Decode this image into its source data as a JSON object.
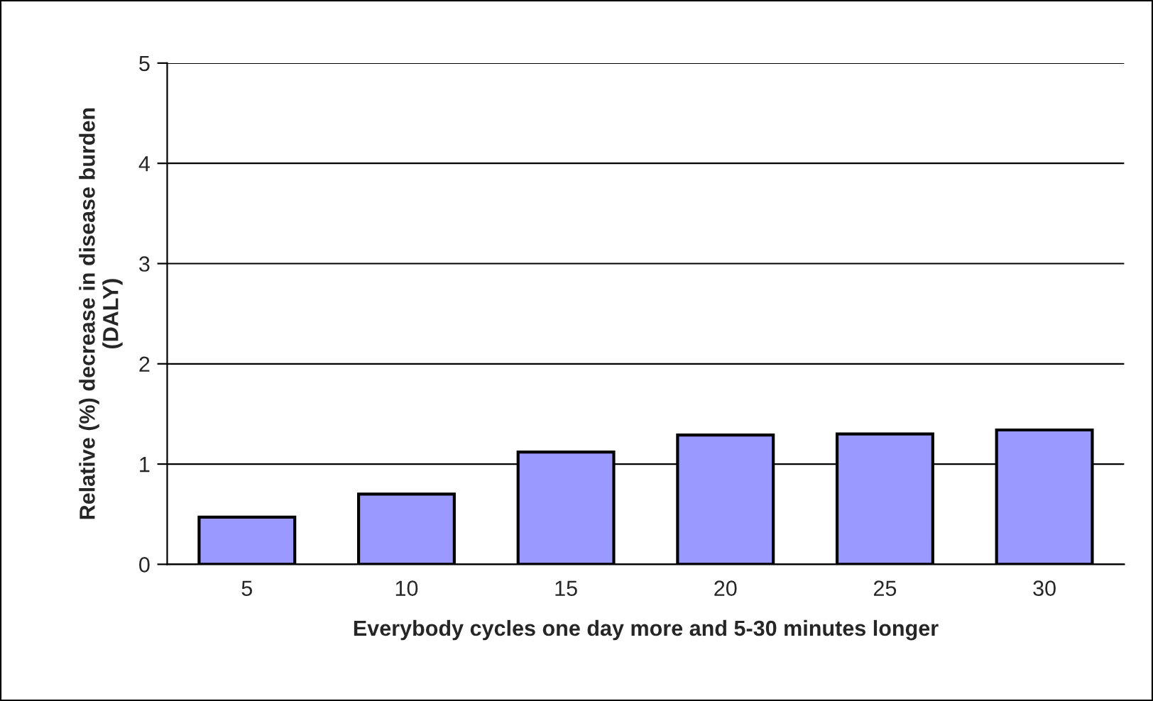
{
  "chart_data": {
    "type": "bar",
    "xlabel": "Everybody cycles one day more and 5-30 minutes longer",
    "ylabel": "Relative (%) decrease in disease burden\n(DALY)",
    "categories": [
      "5",
      "10",
      "15",
      "20",
      "25",
      "30"
    ],
    "values": [
      0.47,
      0.7,
      1.12,
      1.29,
      1.3,
      1.34
    ],
    "color": "#9999ff",
    "ylim": [
      0,
      5
    ],
    "yticks": [
      0,
      1,
      2,
      3,
      4,
      5
    ],
    "grid": "y",
    "legend": false
  }
}
